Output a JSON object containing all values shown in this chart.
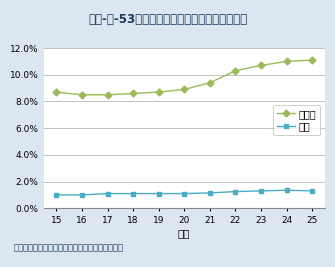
{
  "title": "第１-２-53図／学生に占める留学生割合の推移",
  "years": [
    15,
    16,
    17,
    18,
    19,
    20,
    21,
    22,
    23,
    24,
    25
  ],
  "gakubu": [
    1.0,
    1.0,
    1.1,
    1.1,
    1.1,
    1.1,
    1.15,
    1.25,
    1.3,
    1.35,
    1.3
  ],
  "daigakuin": [
    8.7,
    8.5,
    8.5,
    8.6,
    8.7,
    8.9,
    9.4,
    10.3,
    10.7,
    11.0,
    11.1
  ],
  "gakubu_color": "#4bacc6",
  "daigakuin_color": "#9bbb59",
  "bg_color": "#dce6f1",
  "plot_bg_color": "#ffffff",
  "title_bg_color": "#c5d9f1",
  "title_text_color": "#17375e",
  "xlabel": "年度",
  "ylim_max": 12,
  "yticks": [
    0,
    2,
    4,
    6,
    8,
    10,
    12
  ],
  "legend_gakubu": "学部",
  "legend_daigakuin": "大学院",
  "footer": "資料：「学校基本調査」に基づき文部科学省作成",
  "footer_color": "#17375e"
}
